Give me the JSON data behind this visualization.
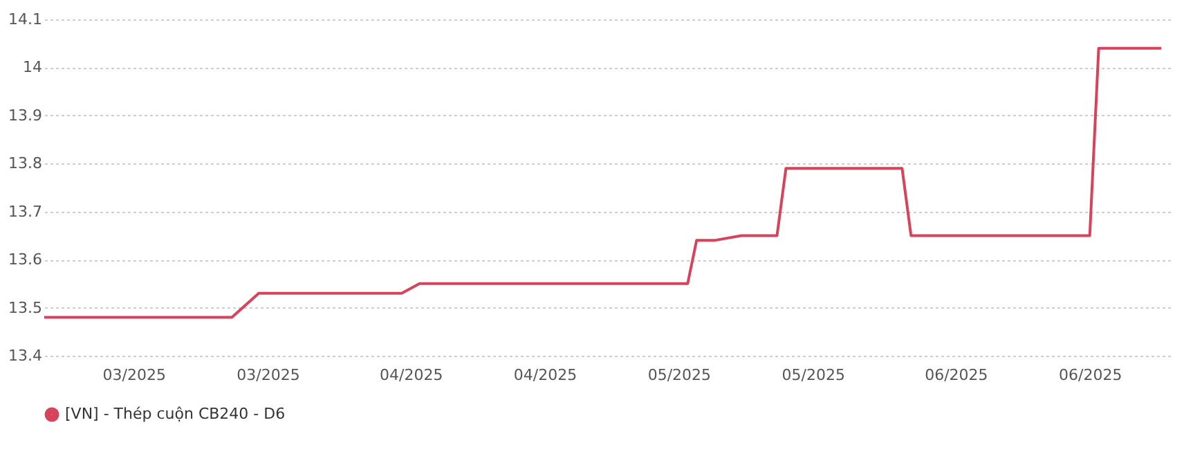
{
  "chart_data": {
    "type": "line",
    "x": [
      "2025-02-19",
      "2025-03-12",
      "2025-03-15",
      "2025-03-31",
      "2025-04-02",
      "2025-05-02",
      "2025-05-03",
      "2025-05-05",
      "2025-05-08",
      "2025-05-12",
      "2025-05-13",
      "2025-05-26",
      "2025-05-27",
      "2025-06-16",
      "2025-06-17",
      "2025-06-24"
    ],
    "series": [
      {
        "name": "[VN] - Thép cuộn CB240 - D6",
        "color": "#d6435a",
        "values": [
          13.48,
          13.48,
          13.53,
          13.53,
          13.55,
          13.55,
          13.64,
          13.64,
          13.65,
          13.65,
          13.79,
          13.79,
          13.65,
          13.65,
          14.04,
          14.04
        ]
      }
    ],
    "xlim": [
      "2025-02-19",
      "2025-06-25"
    ],
    "xticks": [
      {
        "value": "2025-03-01",
        "label": "03/2025"
      },
      {
        "value": "2025-03-16",
        "label": "03/2025"
      },
      {
        "value": "2025-04-01",
        "label": "04/2025"
      },
      {
        "value": "2025-04-16",
        "label": "04/2025"
      },
      {
        "value": "2025-05-01",
        "label": "05/2025"
      },
      {
        "value": "2025-05-16",
        "label": "05/2025"
      },
      {
        "value": "2025-06-01",
        "label": "06/2025"
      },
      {
        "value": "2025-06-16",
        "label": "06/2025"
      }
    ],
    "ylim": [
      13.4,
      14.1
    ],
    "yticks": [
      13.4,
      13.5,
      13.6,
      13.7,
      13.8,
      13.9,
      14,
      14.1
    ],
    "grid": "y",
    "legend": "bottom",
    "marker": "none",
    "line_style": "solid"
  }
}
